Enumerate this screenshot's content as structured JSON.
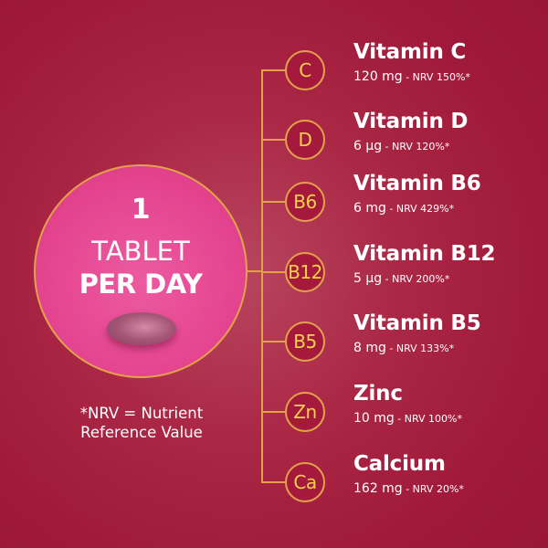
{
  "dose": {
    "count": "1",
    "line1": "TABLET",
    "line2": "PER DAY"
  },
  "footnote": {
    "line1": "*NRV = Nutrient",
    "line2": "Reference Value"
  },
  "colors": {
    "background": "#a3193b",
    "accent_gold": "#e2a24a",
    "circle_pink": "#e54590",
    "badge_text": "#f7d24a"
  },
  "nutrients": [
    {
      "symbol": "C",
      "name": "Vitamin C",
      "amount": "120 mg",
      "nrv": " - NRV 150%*"
    },
    {
      "symbol": "D",
      "name": "Vitamin D",
      "amount": "6 µg",
      "nrv": " - NRV 120%*"
    },
    {
      "symbol": "B6",
      "name": "Vitamin B6",
      "amount": "6 mg",
      "nrv": " - NRV 429%*"
    },
    {
      "symbol": "B12",
      "name": "Vitamin B12",
      "amount": "5 µg",
      "nrv": " - NRV 200%*"
    },
    {
      "symbol": "B5",
      "name": "Vitamin B5",
      "amount": "8 mg",
      "nrv": " - NRV 133%*"
    },
    {
      "symbol": "Zn",
      "name": "Zinc",
      "amount": "10 mg",
      "nrv": " - NRV 100%*"
    },
    {
      "symbol": "Ca",
      "name": "Calcium",
      "amount": "162 mg",
      "nrv": " - NRV 20%*"
    }
  ]
}
